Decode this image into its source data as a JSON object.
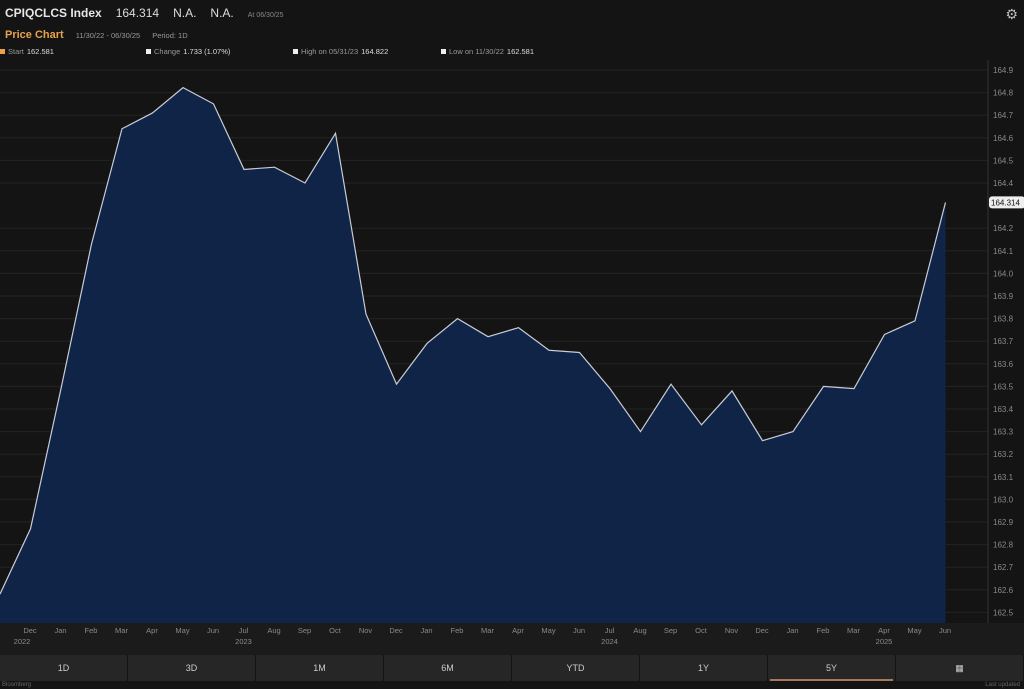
{
  "header": {
    "ticker": "CPIQCLCS Index",
    "last": "164.314",
    "chg1": "N.A.",
    "chg2": "N.A.",
    "asof": "At 06/30/25"
  },
  "sub": {
    "title": "Price Chart",
    "range": "11/30/22 - 06/30/25",
    "period": "Period: 1D"
  },
  "legend": {
    "start_label": "Start",
    "start": "162.581",
    "change_label": "Change",
    "change": "1.733 (1.07%)",
    "high_label": "High on 05/31/23",
    "high": "164.822",
    "low_label": "Low on 11/30/22",
    "low": "162.581"
  },
  "tabs": [
    "1D",
    "3D",
    "1M",
    "6M",
    "YTD",
    "1Y",
    "5Y"
  ],
  "active_tab": "5Y",
  "footer": {
    "left": "Bloomberg",
    "right": "Last updated"
  },
  "colors": {
    "fill": "#0f2447",
    "line": "#c9ccd6",
    "accent": "#e8a24a"
  },
  "chart_data": {
    "type": "area",
    "ylim": [
      162.45,
      164.93
    ],
    "yticks": [
      164.9,
      164.8,
      164.7,
      164.6,
      164.5,
      164.4,
      164.2,
      164.1,
      164.0,
      163.9,
      163.8,
      163.7,
      163.6,
      163.5,
      163.4,
      163.3,
      163.2,
      163.1,
      163.0,
      162.9,
      162.8,
      162.7,
      162.6,
      162.5
    ],
    "last_label": "164.314",
    "xticks": [
      {
        "m": "Dec",
        "y": "2022"
      },
      {
        "m": "Jan"
      },
      {
        "m": "Feb"
      },
      {
        "m": "Mar"
      },
      {
        "m": "Apr"
      },
      {
        "m": "May"
      },
      {
        "m": "Jun"
      },
      {
        "m": "Jul",
        "y": "2023"
      },
      {
        "m": "Aug"
      },
      {
        "m": "Sep"
      },
      {
        "m": "Oct"
      },
      {
        "m": "Nov"
      },
      {
        "m": "Dec"
      },
      {
        "m": "Jan"
      },
      {
        "m": "Feb"
      },
      {
        "m": "Mar"
      },
      {
        "m": "Apr"
      },
      {
        "m": "May"
      },
      {
        "m": "Jun"
      },
      {
        "m": "Jul",
        "y": "2024"
      },
      {
        "m": "Aug"
      },
      {
        "m": "Sep"
      },
      {
        "m": "Oct"
      },
      {
        "m": "Nov"
      },
      {
        "m": "Dec"
      },
      {
        "m": "Jan"
      },
      {
        "m": "Feb"
      },
      {
        "m": "Mar"
      },
      {
        "m": "Apr",
        "y": "2025"
      },
      {
        "m": "May"
      },
      {
        "m": "Jun"
      }
    ],
    "values": [
      162.581,
      162.87,
      163.49,
      164.13,
      164.64,
      164.71,
      164.822,
      164.75,
      164.46,
      164.47,
      164.4,
      164.62,
      163.82,
      163.51,
      163.69,
      163.8,
      163.72,
      163.76,
      163.66,
      163.65,
      163.49,
      163.3,
      163.51,
      163.33,
      163.48,
      163.26,
      163.3,
      163.5,
      163.49,
      163.73,
      163.79,
      164.314
    ]
  }
}
